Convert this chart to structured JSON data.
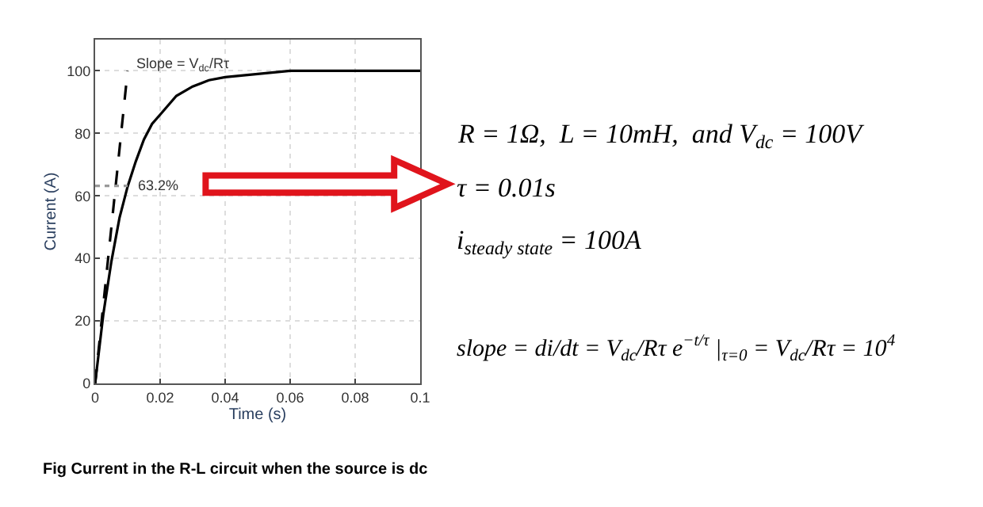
{
  "chart_data": {
    "type": "line",
    "xlabel": "Time (s)",
    "ylabel": "Current (A)",
    "xlim": [
      0,
      0.1
    ],
    "ylim": [
      0,
      110
    ],
    "xticks": [
      0,
      0.02,
      0.04,
      0.06,
      0.08,
      0.1
    ],
    "yticks": [
      0,
      20,
      40,
      60,
      80,
      100
    ],
    "grid": true,
    "legend": false,
    "marker": "none",
    "series": [
      {
        "color": "#000000",
        "line_style": "solid",
        "x": [
          0,
          0.0025,
          0.005,
          0.0075,
          0.01,
          0.0125,
          0.015,
          0.0175,
          0.02,
          0.025,
          0.03,
          0.035,
          0.04,
          0.05,
          0.06,
          0.08,
          0.1
        ],
        "values": [
          0,
          22,
          39,
          53,
          63,
          71,
          78,
          83,
          86,
          92,
          95,
          97,
          98,
          99,
          100,
          100,
          100
        ]
      },
      {
        "color": "#000000",
        "line_style": "dashed",
        "x": [
          0,
          0.01
        ],
        "values": [
          0,
          100
        ]
      },
      {
        "color": "#999999",
        "line_style": "dotted",
        "x": [
          0,
          0.01
        ],
        "values": [
          63.2,
          63.2
        ]
      }
    ],
    "annotations": [
      {
        "text": "Slope = V$_{dc}$/Rτ",
        "x": 0.01,
        "y": 100
      },
      {
        "text": "63.2%",
        "x": 0.01,
        "y": 63.2
      },
      "R = 1Ω,  L = 10mH,  and V$_{dc}$ = 100V",
      "τ = 0.01s",
      "i$_{steady state}$ = 100A",
      "slope = di/dt = V$_{dc}$/Rτ e$^{−t/τ}$ |$_{τ=0}$ = V$_{dc}$/Rτ = 10$^{4}$",
      "Fig Current in the R-L circuit when the source is dc"
    ]
  }
}
